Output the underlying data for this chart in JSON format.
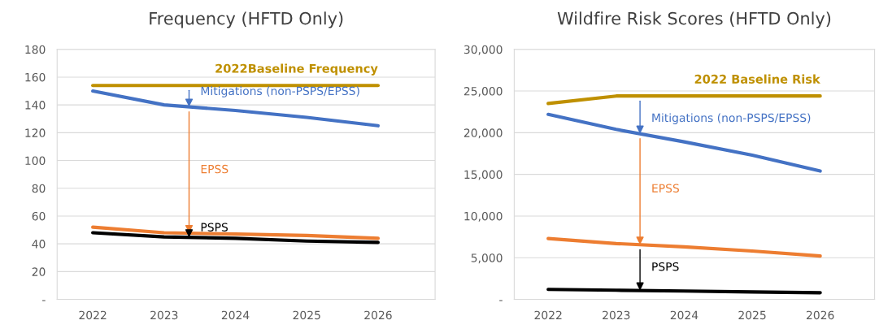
{
  "chart_data": [
    {
      "type": "line",
      "title": "Frequency (HFTD Only)",
      "categories": [
        "2022",
        "2023",
        "2024",
        "2025",
        "2026"
      ],
      "series": [
        {
          "color": "#bf9000",
          "values": [
            154,
            154,
            154,
            154,
            154
          ]
        },
        {
          "color": "#4472c4",
          "values": [
            150,
            140,
            136,
            131,
            125
          ]
        },
        {
          "color": "#ed7d31",
          "values": [
            52,
            48,
            47,
            46,
            44
          ]
        },
        {
          "color": "#000000",
          "values": [
            48,
            45,
            44,
            42,
            41
          ]
        }
      ],
      "annotations": [
        "2022Baseline Frequency",
        "Mitigations (non-PSPS/EPSS)",
        "EPSS",
        "PSPS"
      ],
      "ylim": [
        0,
        180
      ],
      "yticks": [
        {
          "value": 0,
          "label": "-"
        },
        20,
        40,
        60,
        80,
        100,
        120,
        140,
        160,
        180
      ],
      "grid": "y"
    },
    {
      "type": "line",
      "title": "Wildfire Risk Scores (HFTD Only)",
      "categories": [
        "2022",
        "2023",
        "2024",
        "2025",
        "2026"
      ],
      "series": [
        {
          "color": "#bf9000",
          "values": [
            23500,
            24400,
            24400,
            24400,
            24400
          ]
        },
        {
          "color": "#4472c4",
          "values": [
            22200,
            20400,
            18900,
            17300,
            15400
          ]
        },
        {
          "color": "#ed7d31",
          "values": [
            7300,
            6700,
            6300,
            5800,
            5200
          ]
        },
        {
          "color": "#000000",
          "values": [
            1200,
            1100,
            1000,
            900,
            800
          ]
        }
      ],
      "annotations": [
        "2022 Baseline Risk",
        "Mitigations (non-PSPS/EPSS)",
        "EPSS",
        "PSPS"
      ],
      "ylim": [
        0,
        30000
      ],
      "yticks": [
        {
          "value": 0,
          "label": "-"
        },
        {
          "value": 5000,
          "label": "5,000"
        },
        {
          "value": 10000,
          "label": "10,000"
        },
        {
          "value": 15000,
          "label": "15,000"
        },
        {
          "value": 20000,
          "label": "20,000"
        },
        {
          "value": 25000,
          "label": "25,000"
        },
        {
          "value": 30000,
          "label": "30,000"
        }
      ],
      "grid": "y"
    }
  ]
}
